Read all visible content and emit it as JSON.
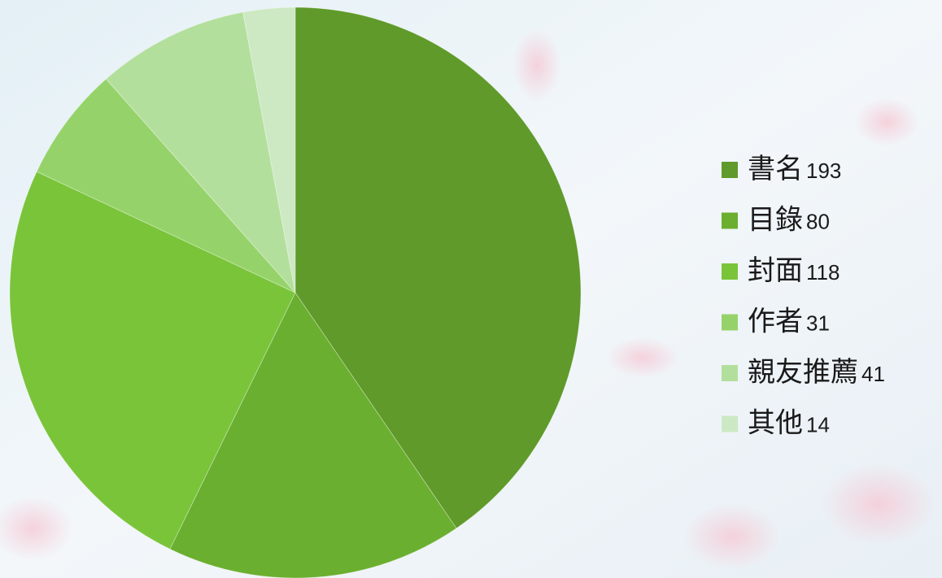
{
  "chart_data": {
    "type": "pie",
    "categories": [
      "書名",
      "目錄",
      "封面",
      "作者",
      "親友推薦",
      "其他"
    ],
    "values": [
      193,
      80,
      118,
      31,
      41,
      14
    ],
    "colors": [
      "#5f9a2a",
      "#6aaf2f",
      "#7ac43a",
      "#95d36a",
      "#b3df9c",
      "#cde9c3"
    ],
    "legend": "right"
  }
}
